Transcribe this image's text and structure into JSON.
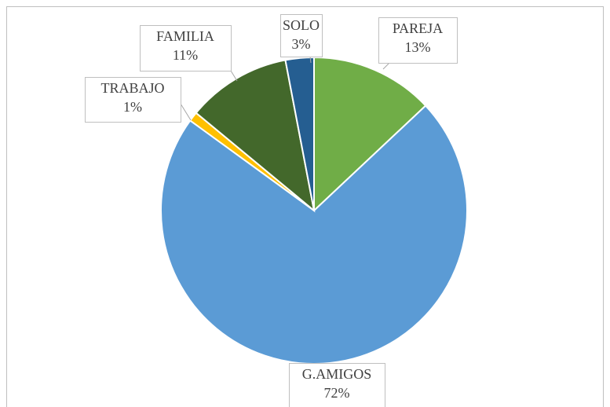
{
  "chart_data": {
    "type": "pie",
    "categories": [
      "PAREJA",
      "G.AMIGOS",
      "TRABAJO",
      "FAMILIA",
      "SOLO"
    ],
    "values": [
      13,
      72,
      1,
      11,
      3
    ],
    "value_labels": [
      "13%",
      "72%",
      "1%",
      "11%",
      "3%"
    ],
    "colors": [
      "#70ad47",
      "#5b9bd5",
      "#ffc000",
      "#43682b",
      "#255e91"
    ]
  }
}
